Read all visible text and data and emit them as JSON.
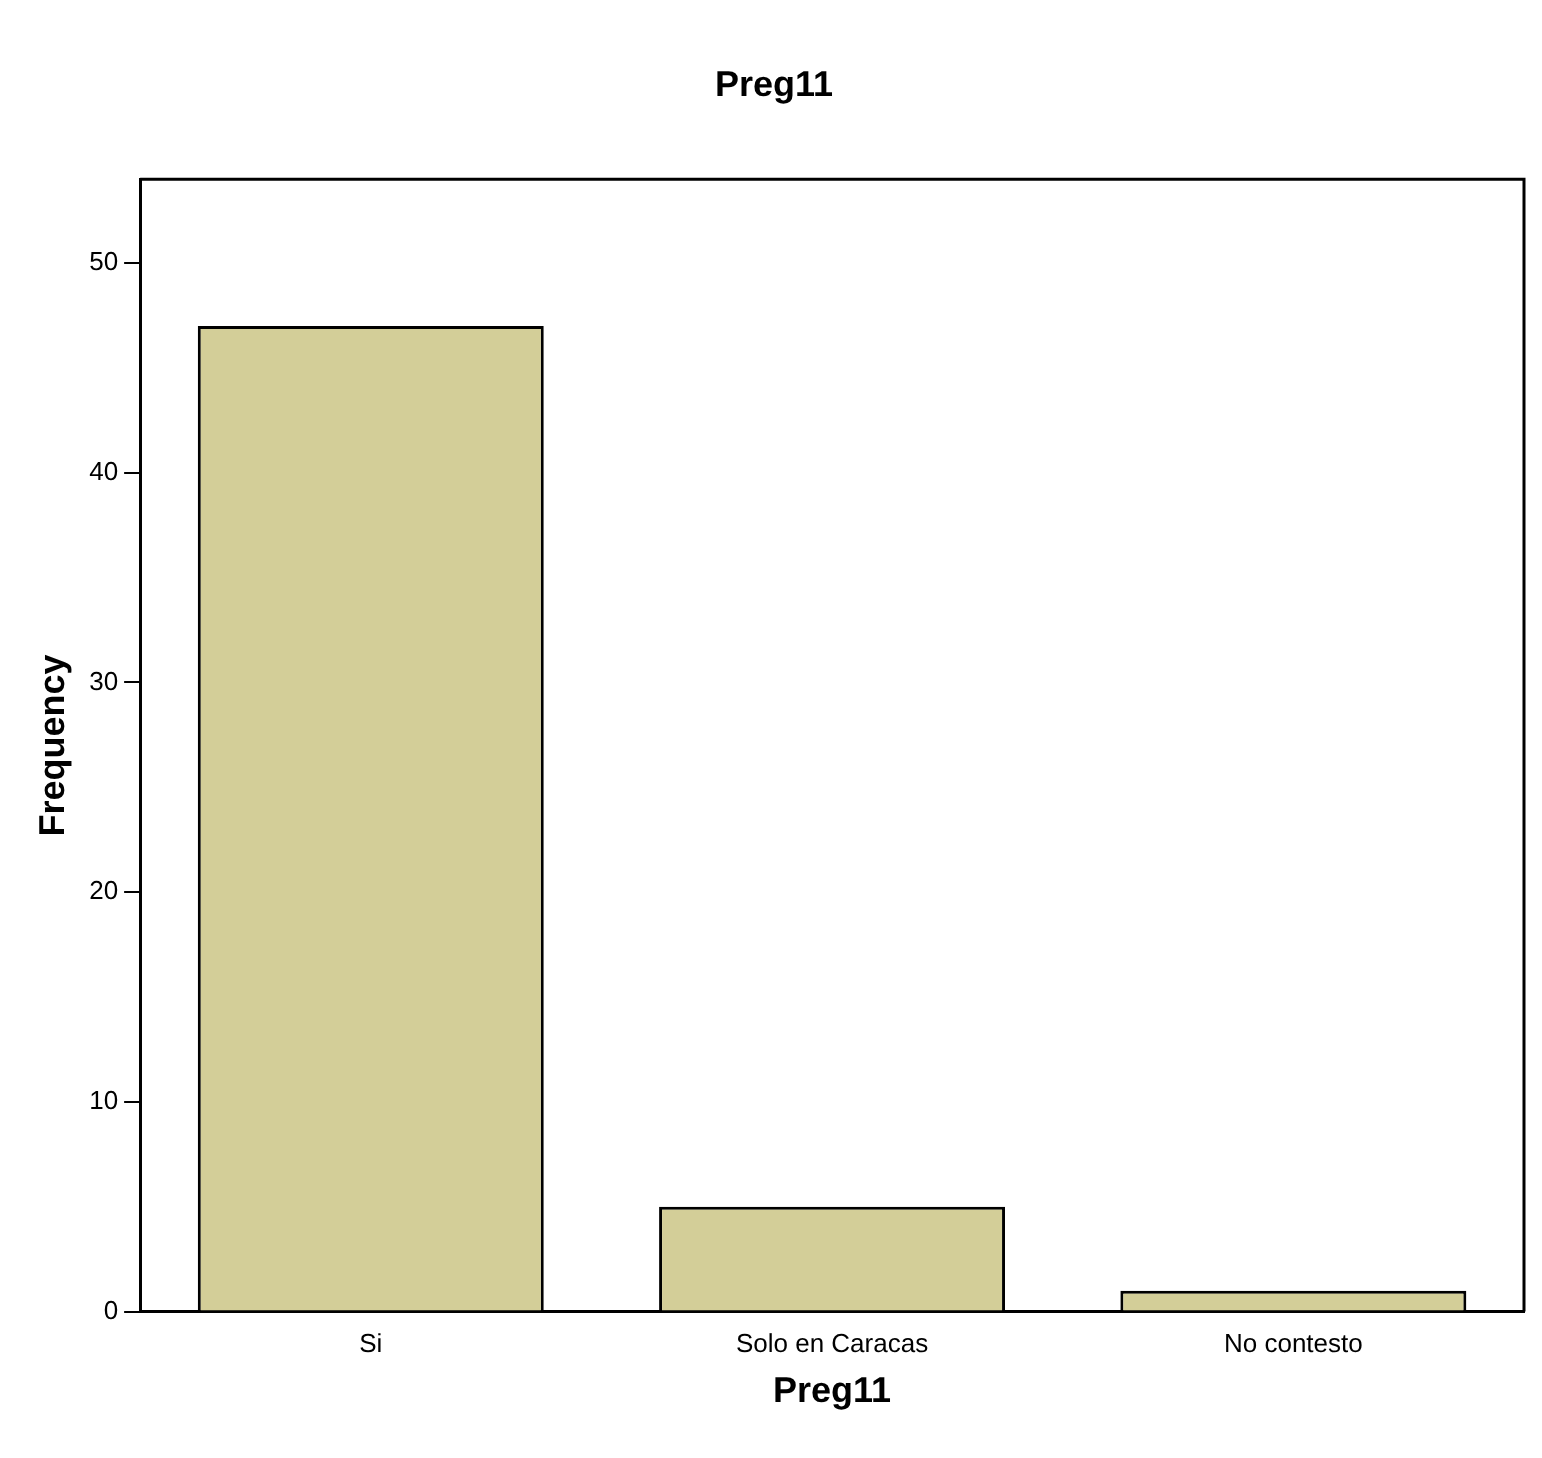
{
  "chart_data": {
    "type": "bar",
    "title": "Preg11",
    "xlabel": "Preg11",
    "ylabel": "Frequency",
    "categories": [
      "Si",
      "Solo en Caracas",
      "No contesto"
    ],
    "values": [
      47,
      5,
      1
    ],
    "color": "#d3ce98",
    "ylim": [
      0,
      54
    ],
    "yticks": [
      0,
      10,
      20,
      30,
      40,
      50
    ],
    "grid": false,
    "legend": false
  }
}
